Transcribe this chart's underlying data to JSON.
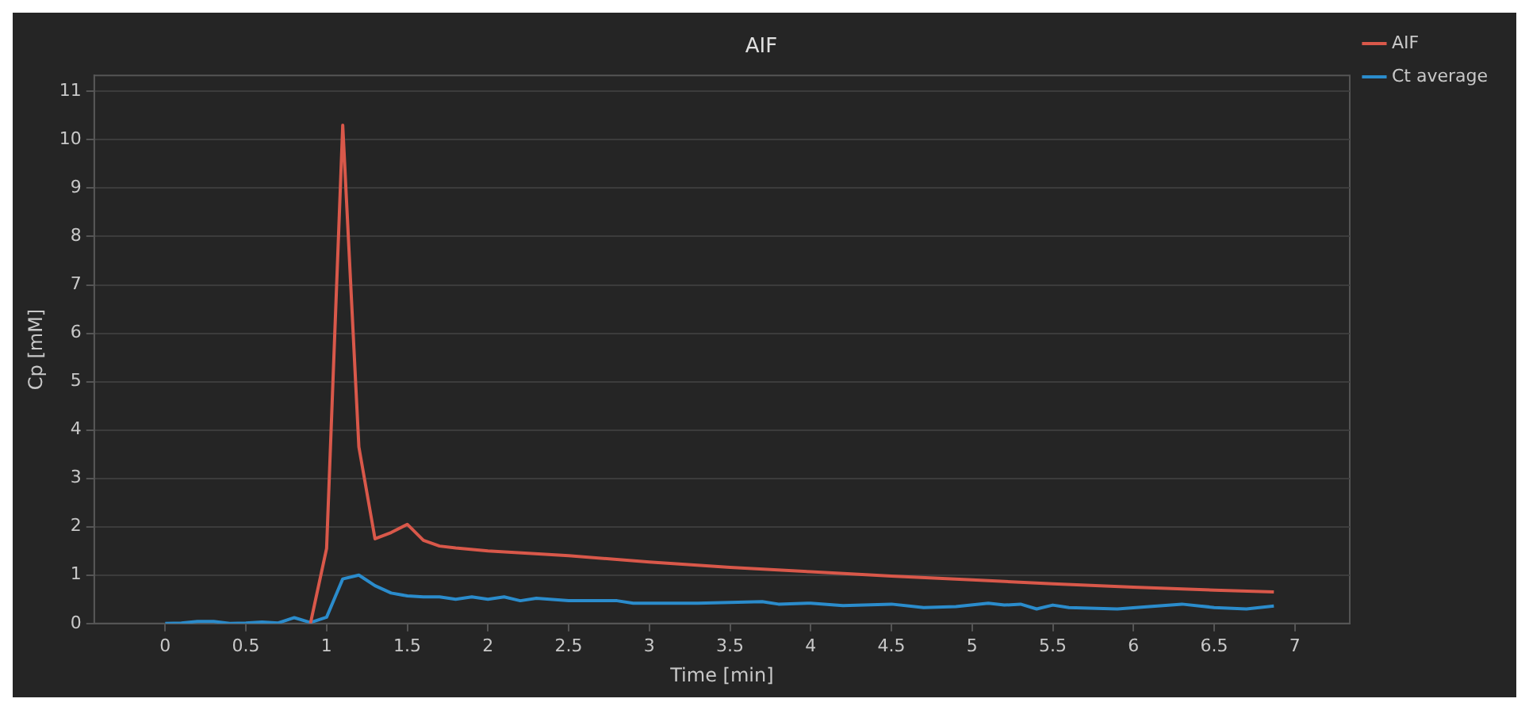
{
  "chart_data": {
    "type": "line",
    "title": "AIF",
    "xlabel": "Time [min]",
    "ylabel": "Cp [mM]",
    "xlim": [
      -0.44,
      7.34
    ],
    "xticks": [
      0,
      0.5,
      1,
      1.5,
      2,
      2.5,
      3,
      3.5,
      4,
      4.5,
      5,
      5.5,
      6,
      6.5,
      7
    ],
    "ylim": [
      0,
      11.33
    ],
    "yticks": [
      0,
      1,
      2,
      3,
      4,
      5,
      6,
      7,
      8,
      9,
      10,
      11
    ],
    "grid": "y",
    "legend": "top right",
    "marker": "none",
    "line_style": "solid",
    "series": [
      {
        "name": "AIF",
        "color": "#d9584a",
        "x": [
          0.9,
          1.0,
          1.1,
          1.2,
          1.3,
          1.4,
          1.5,
          1.6,
          1.7,
          1.8,
          2.0,
          2.5,
          3.0,
          3.5,
          4.0,
          4.5,
          5.0,
          5.5,
          6.0,
          6.5,
          6.87
        ],
        "values": [
          0,
          1.55,
          10.3,
          3.65,
          1.75,
          1.88,
          2.05,
          1.72,
          1.6,
          1.56,
          1.5,
          1.4,
          1.27,
          1.16,
          1.07,
          0.98,
          0.9,
          0.82,
          0.75,
          0.69,
          0.65
        ]
      },
      {
        "name": "Ct average",
        "color": "#2b8ccc",
        "x": [
          0,
          0.1,
          0.2,
          0.3,
          0.4,
          0.5,
          0.6,
          0.7,
          0.8,
          0.9,
          1.0,
          1.1,
          1.2,
          1.3,
          1.4,
          1.5,
          1.6,
          1.7,
          1.8,
          1.9,
          2.0,
          2.1,
          2.2,
          2.3,
          2.5,
          2.8,
          2.9,
          3.0,
          3.3,
          3.7,
          3.8,
          4.0,
          4.2,
          4.5,
          4.7,
          4.9,
          5.1,
          5.2,
          5.3,
          5.4,
          5.5,
          5.6,
          5.9,
          6.3,
          6.5,
          6.7,
          6.87
        ],
        "values": [
          0,
          0.01,
          0.04,
          0.04,
          0,
          0.01,
          0.03,
          0.01,
          0.12,
          0.02,
          0.13,
          0.92,
          1.0,
          0.78,
          0.63,
          0.57,
          0.55,
          0.55,
          0.5,
          0.55,
          0.5,
          0.55,
          0.47,
          0.52,
          0.47,
          0.47,
          0.42,
          0.42,
          0.42,
          0.45,
          0.4,
          0.42,
          0.37,
          0.4,
          0.33,
          0.35,
          0.42,
          0.38,
          0.4,
          0.3,
          0.38,
          0.33,
          0.3,
          0.4,
          0.33,
          0.3,
          0.36
        ]
      }
    ]
  }
}
